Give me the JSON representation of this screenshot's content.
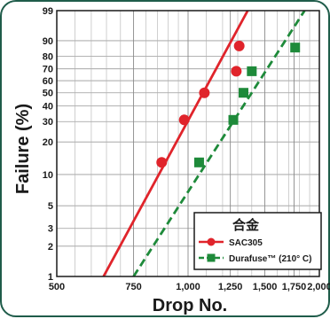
{
  "chart_data": {
    "type": "scatter",
    "title": "",
    "xlabel": "Drop No.",
    "ylabel": "Failure (%)",
    "x_scale": "log",
    "y_scale": "weibull-probability",
    "xlim": [
      500,
      2000
    ],
    "ylim": [
      1,
      99
    ],
    "grid": true,
    "legend_position": "bottom-right",
    "x_ticks": [
      500,
      750,
      1000,
      1250,
      1500,
      1750,
      2000
    ],
    "x_tick_labels": [
      "500",
      "750",
      "1,000",
      "1,250",
      "1,500",
      "1,750",
      "2,000"
    ],
    "y_ticks": [
      1,
      2,
      3,
      5,
      10,
      20,
      30,
      40,
      50,
      60,
      70,
      80,
      90,
      99
    ],
    "y_tick_labels": [
      "1",
      "2",
      "3",
      "5",
      "10",
      "20",
      "30",
      "40",
      "50",
      "60",
      "70",
      "80",
      "90",
      "99"
    ],
    "legend_title": "合金",
    "series": [
      {
        "name": "SAC305",
        "color": "#e0242b",
        "marker": "circle",
        "line_style": "solid",
        "points": [
          {
            "x": 870,
            "y": 13
          },
          {
            "x": 980,
            "y": 31
          },
          {
            "x": 1090,
            "y": 50
          },
          {
            "x": 1290,
            "y": 68
          },
          {
            "x": 1310,
            "y": 87
          }
        ],
        "fit_line": [
          {
            "x": 640,
            "y": 1
          },
          {
            "x": 1370,
            "y": 99
          }
        ]
      },
      {
        "name": "Durafuse™ (210° C)",
        "color": "#1e8a3a",
        "marker": "square",
        "line_style": "dashed",
        "points": [
          {
            "x": 1060,
            "y": 13
          },
          {
            "x": 1270,
            "y": 31
          },
          {
            "x": 1340,
            "y": 50
          },
          {
            "x": 1400,
            "y": 68
          },
          {
            "x": 1760,
            "y": 86
          }
        ],
        "fit_line": [
          {
            "x": 750,
            "y": 1
          },
          {
            "x": 1850,
            "y": 99
          }
        ]
      }
    ]
  }
}
